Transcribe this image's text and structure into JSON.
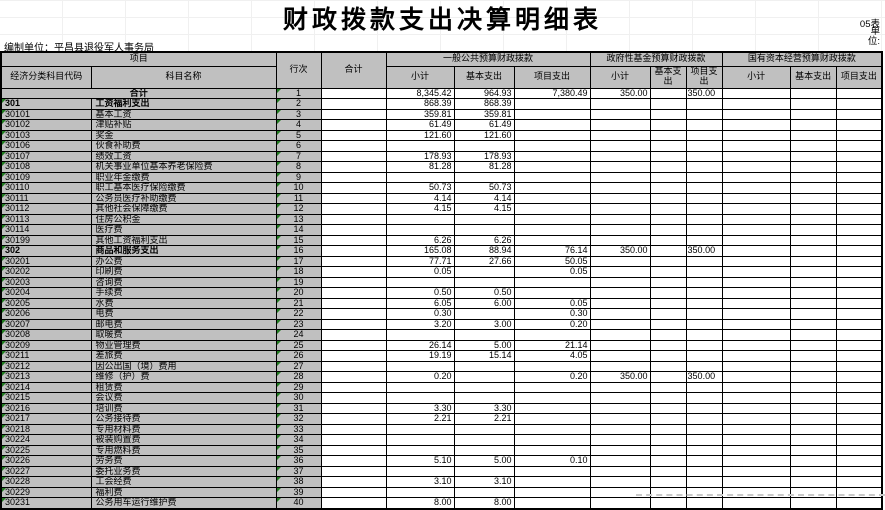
{
  "title": "财政拨款支出决算明细表",
  "meta": {
    "form_no": "05表",
    "unit_wrapped": "单\n位:",
    "prepared_by": "编制单位：平昌县退役军人事务局"
  },
  "colors": {
    "header_fill": "#c0c0c0",
    "grid_line": "#000000",
    "error_triangle": "#1f7a1f",
    "page_break_dash": "#c9c9c9"
  },
  "table": {
    "headers": {
      "project": "项目",
      "code": "经济分类科目代码",
      "subject_name": "科目名称",
      "row_no": "行次",
      "total": "合计",
      "groups": [
        {
          "label": "一般公共预算财政拨款",
          "cols": [
            "小计",
            "基本支出",
            "项目支出"
          ]
        },
        {
          "label": "政府性基金预算财政拨款",
          "cols": [
            "小计",
            "基本支出",
            "项目支出"
          ]
        },
        {
          "label": "国有资本经营预算财政拨款",
          "cols": [
            "小计",
            "基本支出",
            "项目支出"
          ]
        }
      ]
    },
    "rows": [
      {
        "code": "",
        "name": "合计",
        "line": "1",
        "bold": true,
        "merged": true,
        "cells": [
          "",
          "8,345.42",
          "964.93",
          "7,380.49",
          "350.00",
          "",
          "350.00",
          "",
          "",
          ""
        ]
      },
      {
        "code": "301",
        "name": "工资福利支出",
        "line": "2",
        "bold": true,
        "cells": [
          "",
          "868.39",
          "868.39",
          "",
          "",
          "",
          "",
          "",
          "",
          ""
        ]
      },
      {
        "code": "30101",
        "name": "基本工资",
        "line": "3",
        "cells": [
          "",
          "359.81",
          "359.81",
          "",
          "",
          "",
          "",
          "",
          "",
          ""
        ]
      },
      {
        "code": "30102",
        "name": "津贴补贴",
        "line": "4",
        "cells": [
          "",
          "61.49",
          "61.49",
          "",
          "",
          "",
          "",
          "",
          "",
          ""
        ]
      },
      {
        "code": "30103",
        "name": "奖金",
        "line": "5",
        "cells": [
          "",
          "121.60",
          "121.60",
          "",
          "",
          "",
          "",
          "",
          "",
          ""
        ]
      },
      {
        "code": "30106",
        "name": "伙食补助费",
        "line": "6",
        "cells": [
          "",
          "",
          "",
          "",
          "",
          "",
          "",
          "",
          "",
          ""
        ]
      },
      {
        "code": "30107",
        "name": "绩效工资",
        "line": "7",
        "cells": [
          "",
          "178.93",
          "178.93",
          "",
          "",
          "",
          "",
          "",
          "",
          ""
        ]
      },
      {
        "code": "30108",
        "name": "机关事业单位基本养老保险费",
        "line": "8",
        "cells": [
          "",
          "81.28",
          "81.28",
          "",
          "",
          "",
          "",
          "",
          "",
          ""
        ]
      },
      {
        "code": "30109",
        "name": "职业年金缴费",
        "line": "9",
        "cells": [
          "",
          "",
          "",
          "",
          "",
          "",
          "",
          "",
          "",
          ""
        ]
      },
      {
        "code": "30110",
        "name": "职工基本医疗保险缴费",
        "line": "10",
        "cells": [
          "",
          "50.73",
          "50.73",
          "",
          "",
          "",
          "",
          "",
          "",
          ""
        ]
      },
      {
        "code": "30111",
        "name": "公务员医疗补助缴费",
        "line": "11",
        "cells": [
          "",
          "4.14",
          "4.14",
          "",
          "",
          "",
          "",
          "",
          "",
          ""
        ]
      },
      {
        "code": "30112",
        "name": "其他社会保障缴费",
        "line": "12",
        "cells": [
          "",
          "4.15",
          "4.15",
          "",
          "",
          "",
          "",
          "",
          "",
          ""
        ]
      },
      {
        "code": "30113",
        "name": "住房公积金",
        "line": "13",
        "cells": [
          "",
          "",
          "",
          "",
          "",
          "",
          "",
          "",
          "",
          ""
        ]
      },
      {
        "code": "30114",
        "name": "医疗费",
        "line": "14",
        "cells": [
          "",
          "",
          "",
          "",
          "",
          "",
          "",
          "",
          "",
          ""
        ]
      },
      {
        "code": "30199",
        "name": "其他工资福利支出",
        "line": "15",
        "cells": [
          "",
          "6.26",
          "6.26",
          "",
          "",
          "",
          "",
          "",
          "",
          ""
        ]
      },
      {
        "code": "302",
        "name": "商品和服务支出",
        "line": "16",
        "bold": true,
        "cells": [
          "",
          "165.08",
          "88.94",
          "76.14",
          "350.00",
          "",
          "350.00",
          "",
          "",
          ""
        ]
      },
      {
        "code": "30201",
        "name": "办公费",
        "line": "17",
        "cells": [
          "",
          "77.71",
          "27.66",
          "50.05",
          "",
          "",
          "",
          "",
          "",
          ""
        ]
      },
      {
        "code": "30202",
        "name": "印刷费",
        "line": "18",
        "cells": [
          "",
          "0.05",
          "",
          "0.05",
          "",
          "",
          "",
          "",
          "",
          ""
        ]
      },
      {
        "code": "30203",
        "name": "咨询费",
        "line": "19",
        "cells": [
          "",
          "",
          "",
          "",
          "",
          "",
          "",
          "",
          "",
          ""
        ]
      },
      {
        "code": "30204",
        "name": "手续费",
        "line": "20",
        "cells": [
          "",
          "0.50",
          "0.50",
          "",
          "",
          "",
          "",
          "",
          "",
          ""
        ]
      },
      {
        "code": "30205",
        "name": "水费",
        "line": "21",
        "cells": [
          "",
          "6.05",
          "6.00",
          "0.05",
          "",
          "",
          "",
          "",
          "",
          ""
        ]
      },
      {
        "code": "30206",
        "name": "电费",
        "line": "22",
        "cells": [
          "",
          "0.30",
          "",
          "0.30",
          "",
          "",
          "",
          "",
          "",
          ""
        ]
      },
      {
        "code": "30207",
        "name": "邮电费",
        "line": "23",
        "cells": [
          "",
          "3.20",
          "3.00",
          "0.20",
          "",
          "",
          "",
          "",
          "",
          ""
        ]
      },
      {
        "code": "30208",
        "name": "取暖费",
        "line": "24",
        "cells": [
          "",
          "",
          "",
          "",
          "",
          "",
          "",
          "",
          "",
          ""
        ]
      },
      {
        "code": "30209",
        "name": "物业管理费",
        "line": "25",
        "cells": [
          "",
          "26.14",
          "5.00",
          "21.14",
          "",
          "",
          "",
          "",
          "",
          ""
        ]
      },
      {
        "code": "30211",
        "name": "差旅费",
        "line": "26",
        "cells": [
          "",
          "19.19",
          "15.14",
          "4.05",
          "",
          "",
          "",
          "",
          "",
          ""
        ]
      },
      {
        "code": "30212",
        "name": "因公出国（境）费用",
        "line": "27",
        "cells": [
          "",
          "",
          "",
          "",
          "",
          "",
          "",
          "",
          "",
          ""
        ]
      },
      {
        "code": "30213",
        "name": "维修（护）费",
        "line": "28",
        "cells": [
          "",
          "0.20",
          "",
          "0.20",
          "350.00",
          "",
          "350.00",
          "",
          "",
          ""
        ]
      },
      {
        "code": "30214",
        "name": "租赁费",
        "line": "29",
        "cells": [
          "",
          "",
          "",
          "",
          "",
          "",
          "",
          "",
          "",
          ""
        ]
      },
      {
        "code": "30215",
        "name": "会议费",
        "line": "30",
        "cells": [
          "",
          "",
          "",
          "",
          "",
          "",
          "",
          "",
          "",
          ""
        ]
      },
      {
        "code": "30216",
        "name": "培训费",
        "line": "31",
        "cells": [
          "",
          "3.30",
          "3.30",
          "",
          "",
          "",
          "",
          "",
          "",
          ""
        ]
      },
      {
        "code": "30217",
        "name": "公务接待费",
        "line": "32",
        "cells": [
          "",
          "2.21",
          "2.21",
          "",
          "",
          "",
          "",
          "",
          "",
          ""
        ]
      },
      {
        "code": "30218",
        "name": "专用材料费",
        "line": "33",
        "cells": [
          "",
          "",
          "",
          "",
          "",
          "",
          "",
          "",
          "",
          ""
        ]
      },
      {
        "code": "30224",
        "name": "被装购置费",
        "line": "34",
        "cells": [
          "",
          "",
          "",
          "",
          "",
          "",
          "",
          "",
          "",
          ""
        ]
      },
      {
        "code": "30225",
        "name": "专用燃料费",
        "line": "35",
        "cells": [
          "",
          "",
          "",
          "",
          "",
          "",
          "",
          "",
          "",
          ""
        ]
      },
      {
        "code": "30226",
        "name": "劳务费",
        "line": "36",
        "cells": [
          "",
          "5.10",
          "5.00",
          "0.10",
          "",
          "",
          "",
          "",
          "",
          ""
        ]
      },
      {
        "code": "30227",
        "name": "委托业务费",
        "line": "37",
        "cells": [
          "",
          "",
          "",
          "",
          "",
          "",
          "",
          "",
          "",
          ""
        ]
      },
      {
        "code": "30228",
        "name": "工会经费",
        "line": "38",
        "cells": [
          "",
          "3.10",
          "3.10",
          "",
          "",
          "",
          "",
          "",
          "",
          ""
        ]
      },
      {
        "code": "30229",
        "name": "福利费",
        "line": "39",
        "cells": [
          "",
          "",
          "",
          "",
          "",
          "",
          "",
          "",
          "",
          ""
        ]
      },
      {
        "code": "30231",
        "name": "公务用车运行维护费",
        "line": "40",
        "cells": [
          "",
          "8.00",
          "8.00",
          "",
          "",
          "",
          "",
          "",
          "",
          ""
        ]
      }
    ]
  }
}
